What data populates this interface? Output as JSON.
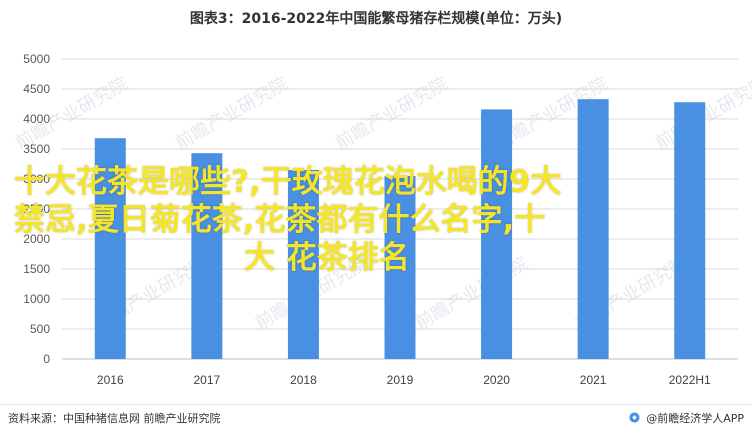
{
  "chart_data": {
    "type": "bar",
    "title": "图表3：2016-2022年中国能繁母猪存栏规模(单位：万头)",
    "categories": [
      "2016",
      "2017",
      "2018",
      "2019",
      "2020",
      "2021",
      "2022H1"
    ],
    "values": [
      3680,
      3430,
      3150,
      3050,
      4160,
      4330,
      4280
    ],
    "ylim": [
      0,
      5000
    ],
    "yticks": [
      "0",
      "500",
      "1000",
      "1500",
      "2000",
      "2500",
      "3000",
      "3500",
      "4000",
      "4500",
      "5000"
    ],
    "grid": true,
    "bar_color": "#4a90e2"
  },
  "overlay_text": {
    "line1": "十大花茶是哪些?,干玫瑰花泡水喝的9大",
    "line2": "禁忌,夏日菊花茶,花茶都有什么名字,十",
    "line3": "大 花茶排名",
    "color": "#f5e52a"
  },
  "watermark": "前瞻产业研究院",
  "footer": {
    "source": "资料来源：中国种猪信息网 前瞻产业研究院",
    "brand": "@前瞻经济学人APP"
  }
}
